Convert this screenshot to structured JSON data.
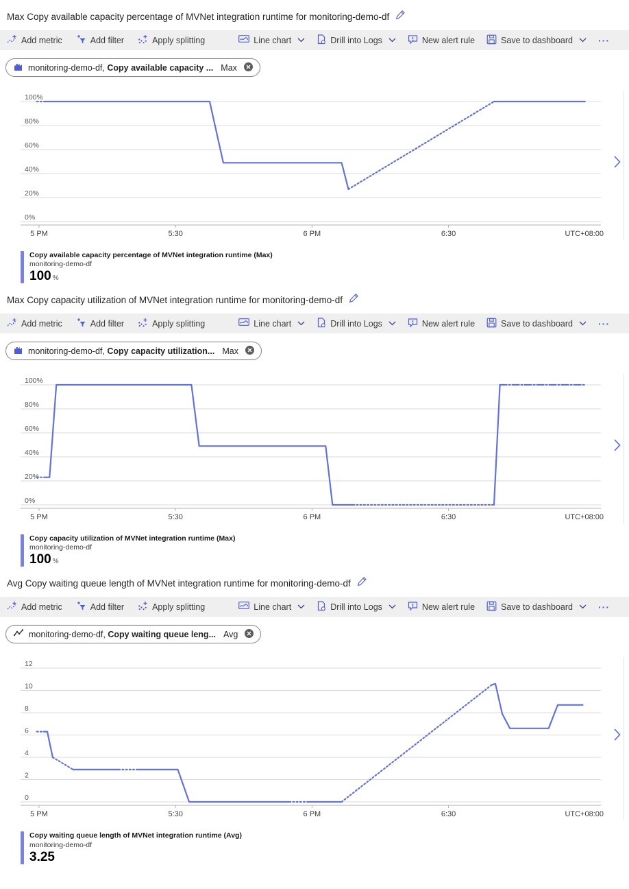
{
  "colors": {
    "accent": "#4e5dd3",
    "line": "#6272d8",
    "legend_bar": "#7b82d9",
    "toolbar_background": "#efefef"
  },
  "toolbar": {
    "add_metric": "Add metric",
    "add_filter": "Add filter",
    "apply_splitting": "Apply splitting",
    "line_chart": "Line chart",
    "drill_into_logs": "Drill into Logs",
    "new_alert_rule": "New alert rule",
    "save_to_dashboard": "Save to dashboard",
    "more": "···",
    "icons": [
      "add-metric-icon",
      "add-filter-icon",
      "apply-splitting-icon",
      "line-chart-icon",
      "drill-into-logs-icon",
      "new-alert-rule-icon",
      "save-to-dashboard-icon",
      "more-icon",
      "chevron-down-icon"
    ]
  },
  "charts": [
    {
      "title": "Max Copy available capacity percentage of MVNet integration runtime for monitoring-demo-df",
      "pill": {
        "icon": "metrics-bar-chart-icon",
        "resource": "monitoring-demo-df,",
        "metric": "Copy available capacity ...",
        "aggregation": "Max",
        "close_icon": "remove-metric-icon"
      },
      "legend": {
        "title": "Copy available capacity percentage of MVNet integration runtime (Max)",
        "resource": "monitoring-demo-df",
        "value": "100",
        "unit": "%"
      },
      "chart_data": {
        "type": "line",
        "title": "Max Copy available capacity percentage of MVNet integration runtime for monitoring-demo-df",
        "ylabel": "",
        "xlabel": "",
        "y_unit": "%",
        "ylim": [
          0,
          100
        ],
        "y_tick_values": [
          100,
          80,
          60,
          40,
          20,
          0
        ],
        "y_tick_labels": [
          "100%",
          "80%",
          "60%",
          "40%",
          "20%",
          "0%"
        ],
        "x_ticks": [
          {
            "label": "5 PM",
            "minute": 0
          },
          {
            "label": "5:30",
            "minute": 30
          },
          {
            "label": "6 PM",
            "minute": 60
          },
          {
            "label": "6:30",
            "minute": 90
          }
        ],
        "x_right_label": "UTC+08:00",
        "grid": true,
        "legend_position": "bottom",
        "series": [
          {
            "name": "Copy available capacity percentage of MVNet integration runtime (Max)",
            "resource": "monitoring-demo-df",
            "color": "#6272d8",
            "segments": [
              {
                "style": "dotted",
                "points": [
                  [
                    -0.5,
                    100
                  ],
                  [
                    1.2,
                    100
                  ]
                ]
              },
              {
                "style": "solid",
                "points": [
                  [
                    1.2,
                    100
                  ],
                  [
                    37.5,
                    100
                  ],
                  [
                    40.5,
                    49
                  ],
                  [
                    66.5,
                    49
                  ],
                  [
                    68,
                    27
                  ]
                ]
              },
              {
                "style": "dotted",
                "points": [
                  [
                    68,
                    27
                  ],
                  [
                    100,
                    100
                  ]
                ]
              },
              {
                "style": "solid",
                "points": [
                  [
                    100,
                    100
                  ],
                  [
                    120,
                    100
                  ]
                ]
              }
            ]
          }
        ]
      }
    },
    {
      "title": "Max Copy capacity utilization of MVNet integration runtime for monitoring-demo-df",
      "pill": {
        "icon": "metrics-bar-chart-icon",
        "resource": "monitoring-demo-df,",
        "metric": "Copy capacity utilization...",
        "aggregation": "Max",
        "close_icon": "remove-metric-icon"
      },
      "legend": {
        "title": "Copy capacity utilization of MVNet integration runtime (Max)",
        "resource": "monitoring-demo-df",
        "value": "100",
        "unit": "%"
      },
      "chart_data": {
        "type": "line",
        "title": "Max Copy capacity utilization of MVNet integration runtime for monitoring-demo-df",
        "ylabel": "",
        "xlabel": "",
        "y_unit": "%",
        "ylim": [
          0,
          100
        ],
        "y_tick_values": [
          100,
          80,
          60,
          40,
          20,
          0
        ],
        "y_tick_labels": [
          "100%",
          "80%",
          "60%",
          "40%",
          "20%",
          "0%"
        ],
        "x_ticks": [
          {
            "label": "5 PM",
            "minute": 0
          },
          {
            "label": "5:30",
            "minute": 30
          },
          {
            "label": "6 PM",
            "minute": 60
          },
          {
            "label": "6:30",
            "minute": 90
          }
        ],
        "x_right_label": "UTC+08:00",
        "grid": true,
        "legend_position": "bottom",
        "series": [
          {
            "name": "Copy capacity utilization of MVNet integration runtime (Max)",
            "resource": "monitoring-demo-df",
            "color": "#6272d8",
            "segments": [
              {
                "style": "dotted",
                "points": [
                  [
                    -0.5,
                    23
                  ],
                  [
                    1.3,
                    23
                  ]
                ]
              },
              {
                "style": "solid",
                "points": [
                  [
                    1.3,
                    23
                  ],
                  [
                    2.3,
                    23
                  ],
                  [
                    3.8,
                    100
                  ],
                  [
                    33.5,
                    100
                  ],
                  [
                    35.2,
                    49
                  ],
                  [
                    63,
                    49
                  ],
                  [
                    64.5,
                    0
                  ],
                  [
                    69,
                    0
                  ]
                ]
              },
              {
                "style": "dotted",
                "points": [
                  [
                    69,
                    0
                  ],
                  [
                    100,
                    0
                  ]
                ]
              },
              {
                "style": "solid",
                "points": [
                  [
                    100,
                    0
                  ],
                  [
                    101.3,
                    100
                  ]
                ]
              },
              {
                "style": "dashdot",
                "points": [
                  [
                    101.3,
                    100
                  ],
                  [
                    120,
                    100
                  ]
                ]
              }
            ]
          }
        ]
      }
    },
    {
      "title": "Avg Copy waiting queue length of MVNet integration runtime for monitoring-demo-df",
      "pill": {
        "icon": "zigzag-line-icon",
        "resource": "monitoring-demo-df,",
        "metric": "Copy waiting queue leng...",
        "aggregation": "Avg",
        "close_icon": "remove-metric-icon"
      },
      "legend": {
        "title": "Copy waiting queue length of MVNet integration runtime (Avg)",
        "resource": "monitoring-demo-df",
        "value": "3.25",
        "unit": ""
      },
      "chart_data": {
        "type": "line",
        "title": "Avg Copy waiting queue length of MVNet integration runtime for monitoring-demo-df",
        "ylabel": "",
        "xlabel": "",
        "y_unit": "",
        "ylim": [
          0,
          12
        ],
        "y_tick_values": [
          12,
          10,
          8,
          6,
          4,
          2,
          0
        ],
        "y_tick_labels": [
          "12",
          "10",
          "8",
          "6",
          "4",
          "2",
          "0"
        ],
        "x_ticks": [
          {
            "label": "5 PM",
            "minute": 0
          },
          {
            "label": "5:30",
            "minute": 30
          },
          {
            "label": "6 PM",
            "minute": 60
          },
          {
            "label": "6:30",
            "minute": 90
          }
        ],
        "x_right_label": "UTC+08:00",
        "grid": true,
        "legend_position": "bottom",
        "series": [
          {
            "name": "Copy waiting queue length of MVNet integration runtime (Avg)",
            "resource": "monitoring-demo-df",
            "color": "#6272d8",
            "segments": [
              {
                "style": "dotted",
                "points": [
                  [
                    -0.5,
                    6.3
                  ],
                  [
                    1,
                    6.3
                  ]
                ]
              },
              {
                "style": "solid",
                "points": [
                  [
                    1,
                    6.3
                  ],
                  [
                    1.8,
                    6.3
                  ],
                  [
                    3,
                    4.0
                  ]
                ]
              },
              {
                "style": "dotted",
                "points": [
                  [
                    3,
                    4.0
                  ],
                  [
                    7.5,
                    2.9
                  ]
                ]
              },
              {
                "style": "solid",
                "points": [
                  [
                    7.5,
                    2.9
                  ],
                  [
                    17.5,
                    2.9
                  ]
                ]
              },
              {
                "style": "dotted",
                "points": [
                  [
                    17.5,
                    2.9
                  ],
                  [
                    21.5,
                    2.9
                  ]
                ]
              },
              {
                "style": "solid",
                "points": [
                  [
                    21.5,
                    2.9
                  ],
                  [
                    30.5,
                    2.9
                  ],
                  [
                    33,
                    0
                  ],
                  [
                    55,
                    0
                  ]
                ]
              },
              {
                "style": "dotted",
                "points": [
                  [
                    55,
                    0
                  ],
                  [
                    59,
                    0
                  ]
                ]
              },
              {
                "style": "solid",
                "points": [
                  [
                    59,
                    0
                  ],
                  [
                    66.5,
                    0
                  ]
                ]
              },
              {
                "style": "dotted",
                "points": [
                  [
                    66.5,
                    0
                  ],
                  [
                    99.5,
                    10.5
                  ]
                ]
              },
              {
                "style": "solid",
                "points": [
                  [
                    99.5,
                    10.5
                  ],
                  [
                    100.3,
                    10.6
                  ],
                  [
                    101.8,
                    7.9
                  ],
                  [
                    103.5,
                    6.6
                  ],
                  [
                    112,
                    6.6
                  ],
                  [
                    114,
                    8.7
                  ],
                  [
                    119.5,
                    8.7
                  ]
                ]
              }
            ]
          }
        ]
      }
    }
  ]
}
